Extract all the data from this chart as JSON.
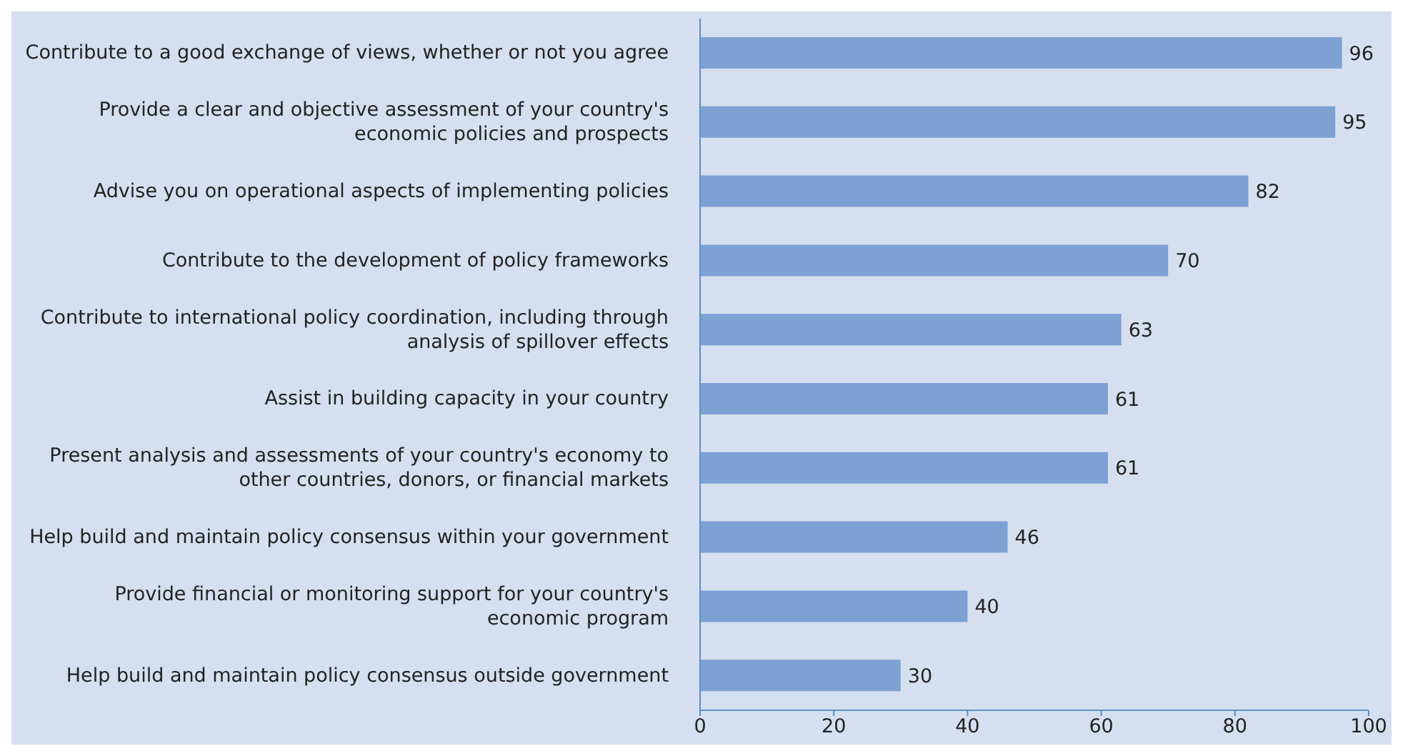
{
  "chart_data": {
    "type": "bar",
    "orientation": "horizontal",
    "categories": [
      "Contribute to a good exchange of views, whether or not you agree",
      "Provide a clear and objective assessment of your country's economic policies and prospects",
      "Advise you on operational aspects of implementing policies",
      "Contribute to the development of policy frameworks",
      "Contribute to international policy coordination, including through analysis of spillover effects",
      "Assist in building capacity in your country",
      "Present analysis and assessments of your country's economy to other countries, donors, or financial markets",
      "Help build and maintain policy consensus within your government",
      "Provide financial or monitoring support for your country's economic program",
      "Help build and maintain policy consensus outside government"
    ],
    "values": [
      96,
      95,
      82,
      70,
      63,
      61,
      61,
      46,
      40,
      30
    ],
    "color": "#7da1d3",
    "xlim": [
      0,
      100
    ],
    "xticks": [
      0,
      20,
      40,
      60,
      80,
      100
    ],
    "data_labels": true,
    "grid": false,
    "legend": false
  }
}
